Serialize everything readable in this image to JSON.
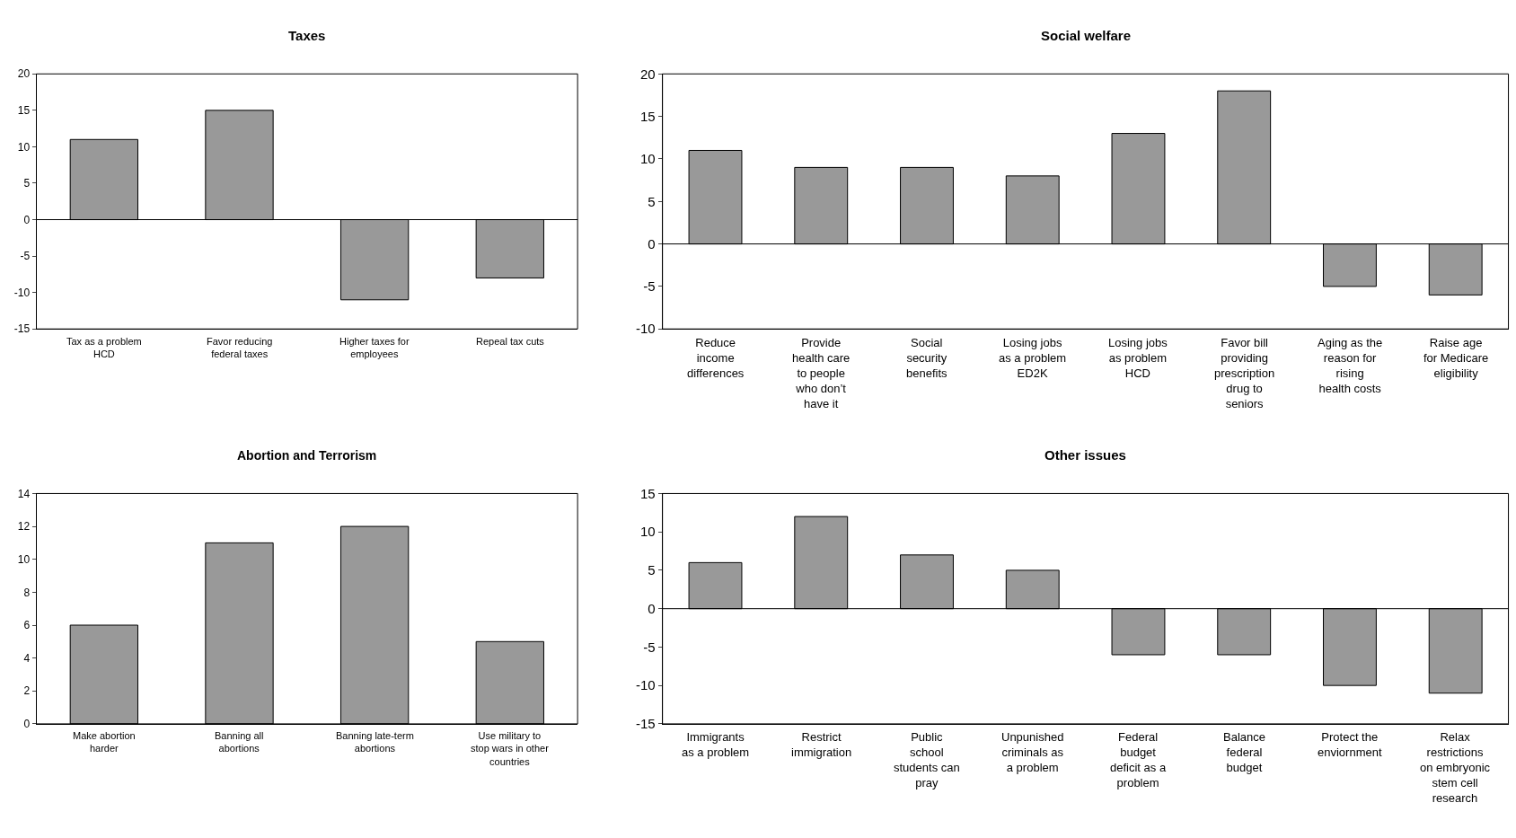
{
  "chart_data": [
    {
      "type": "bar",
      "title": "Taxes",
      "categories": [
        "Tax as a problem HCD",
        "Favor reducing federal taxes",
        "Higher taxes for employees",
        "Repeal tax cuts"
      ],
      "values": [
        11,
        15,
        -11,
        -8
      ],
      "color": "#999999",
      "ref_lines": [
        {
          "axis": "y",
          "value": 0,
          "color": "#000000"
        }
      ],
      "ylim": [
        -15,
        20
      ],
      "yticks": [
        -15,
        -10,
        -5,
        0,
        5,
        10,
        15,
        20
      ],
      "grid": false,
      "legend": false
    },
    {
      "type": "bar",
      "title": "Social welfare",
      "categories": [
        "Reduce income differences",
        "Provide health care to people who don’t have it",
        "Social security benefits",
        "Losing jobs as a problem ED2K",
        "Losing jobs as problem HCD",
        "Favor bill providing prescription drug to seniors",
        "Aging as the reason for rising health costs",
        "Raise age for Medicare eligibility"
      ],
      "values": [
        11,
        9,
        9,
        8,
        13,
        18,
        -5,
        -6
      ],
      "color": "#999999",
      "ref_lines": [
        {
          "axis": "y",
          "value": 0,
          "color": "#000000"
        }
      ],
      "ylim": [
        -10,
        20
      ],
      "yticks": [
        -10,
        -5,
        0,
        5,
        10,
        15,
        20
      ],
      "grid": false,
      "legend": false
    },
    {
      "type": "bar",
      "title": "Abortion and Terrorism",
      "categories": [
        "Make abortion harder",
        "Banning all abortions",
        "Banning late-term abortions",
        "Use military to stop wars in other countries"
      ],
      "values": [
        6,
        11,
        12,
        5
      ],
      "color": "#999999",
      "ylim": [
        0,
        14
      ],
      "yticks": [
        0,
        2,
        4,
        6,
        8,
        10,
        12,
        14
      ],
      "grid": false,
      "legend": false
    },
    {
      "type": "bar",
      "title": "Other issues",
      "categories": [
        "Immigrants as a problem",
        "Restrict immigration",
        "Public school students can pray",
        "Unpunished criminals as a problem",
        "Federal budget deficit as a problem",
        "Balance federal budget",
        "Protect the enviornment",
        "Relax restrictions on embryonic stem cell research"
      ],
      "values": [
        6,
        12,
        7,
        5,
        -6,
        -6,
        -10,
        -11
      ],
      "color": "#999999",
      "ref_lines": [
        {
          "axis": "y",
          "value": 0,
          "color": "#000000"
        }
      ],
      "ylim": [
        -15,
        15
      ],
      "yticks": [
        -15,
        -10,
        -5,
        0,
        5,
        10,
        15
      ],
      "grid": false,
      "legend": false
    }
  ]
}
